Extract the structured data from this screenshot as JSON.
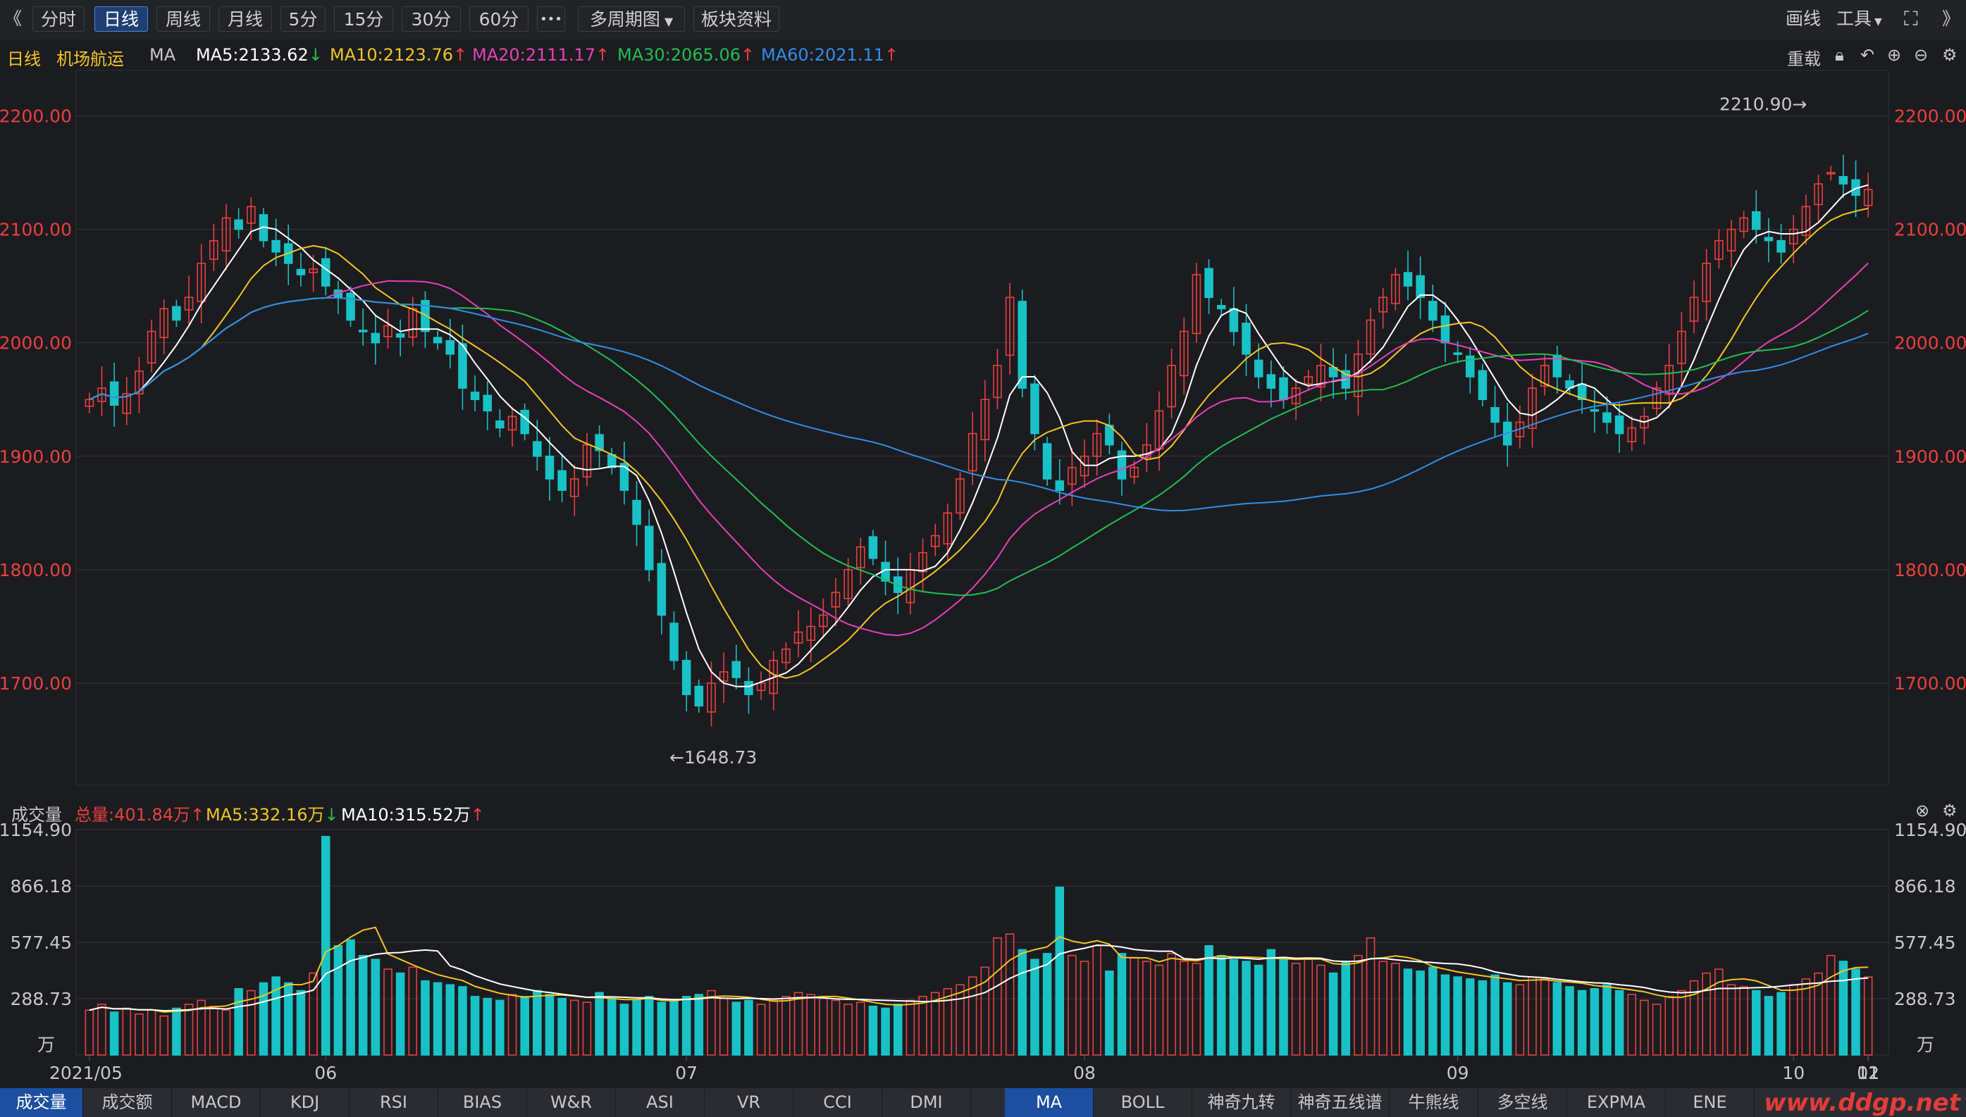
{
  "toolbar": {
    "back_glyph": "《",
    "buttons": [
      "分时",
      "日线",
      "周线",
      "月线",
      "5分",
      "15分",
      "30分",
      "60分"
    ],
    "active": "日线",
    "more_glyph": "•••",
    "multi_period": "多周期图",
    "sector": "板块资料",
    "draw": "画线",
    "tools": "工具",
    "right_glyph": "》"
  },
  "info": {
    "period": "日线",
    "name": "机场航运",
    "ma_label": "MA",
    "ma5": "MA5:2133.62",
    "ma10": "MA10:2123.76",
    "ma20": "MA20:2111.17",
    "ma30": "MA30:2065.06",
    "ma60": "MA60:2021.11",
    "reload": "重载"
  },
  "price_axis": {
    "ticks": [
      "2200.00",
      "2100.00",
      "2000.00",
      "1900.00",
      "1800.00",
      "1700.00"
    ],
    "values": [
      2200,
      2100,
      2000,
      1900,
      1800,
      1700
    ],
    "high_label": "2210.90→",
    "low_label": "←1648.73"
  },
  "volume": {
    "title": "成交量",
    "total": "总量:401.84万",
    "ma5": "MA5:332.16万",
    "ma10": "MA10:315.52万",
    "ticks": [
      "1154.90",
      "866.18",
      "577.45",
      "288.73"
    ],
    "unit": "万"
  },
  "dates": [
    "2021/05",
    "06",
    "07",
    "08",
    "09",
    "10",
    "11",
    "12",
    "01"
  ],
  "bottom_tabs_left": [
    "成交量",
    "成交额",
    "MACD",
    "KDJ",
    "RSI",
    "BIAS",
    "W&R",
    "ASI",
    "VR",
    "CCI",
    "DMI"
  ],
  "bottom_tabs_right": [
    "MA",
    "BOLL",
    "神奇九转",
    "神奇五线谱",
    "牛熊线",
    "多空线",
    "EXPMA",
    "ENE"
  ],
  "watermark": "www.ddgp.net",
  "colors": {
    "up": "#e8403f",
    "down": "#19c2c6",
    "ma5": "#ffffff",
    "ma10": "#f2c523",
    "ma20": "#e740b8",
    "ma30": "#1fbf53",
    "ma60": "#2f8fe8",
    "accent": "#1c4fa0"
  },
  "chart_data": {
    "type": "candlestick",
    "x_range": [
      "2021/05",
      "01"
    ],
    "ylim": [
      1610,
      2240
    ],
    "ma_values_latest": {
      "MA5": 2133.62,
      "MA10": 2123.76,
      "MA20": 2111.17,
      "MA30": 2065.06,
      "MA60": 2021.11
    },
    "high": 2210.9,
    "low": 1648.73,
    "close_series": [
      1950,
      1960,
      1945,
      1955,
      1975,
      2010,
      2030,
      2020,
      2040,
      2070,
      2090,
      2110,
      2100,
      2120,
      2090,
      2080,
      2070,
      2060,
      2065,
      2050,
      2040,
      2020,
      2010,
      2000,
      2015,
      2005,
      2030,
      2010,
      2000,
      1990,
      1960,
      1950,
      1940,
      1925,
      1935,
      1920,
      1900,
      1880,
      1870,
      1880,
      1910,
      1905,
      1890,
      1870,
      1840,
      1800,
      1760,
      1720,
      1690,
      1680,
      1700,
      1710,
      1705,
      1690,
      1700,
      1720,
      1730,
      1745,
      1750,
      1760,
      1780,
      1800,
      1820,
      1810,
      1790,
      1780,
      1800,
      1815,
      1830,
      1850,
      1880,
      1920,
      1950,
      1980,
      2040,
      1960,
      1920,
      1880,
      1870,
      1890,
      1900,
      1920,
      1910,
      1880,
      1890,
      1910,
      1940,
      1980,
      2010,
      2060,
      2040,
      2030,
      2010,
      1990,
      1970,
      1960,
      1950,
      1960,
      1970,
      1980,
      1970,
      1960,
      1990,
      2020,
      2040,
      2060,
      2050,
      2040,
      2020,
      2000,
      1990,
      1970,
      1950,
      1930,
      1910,
      1930,
      1960,
      1980,
      1970,
      1960,
      1950,
      1940,
      1930,
      1920,
      1925,
      1935,
      1960,
      1980,
      2010,
      2040,
      2070,
      2090,
      2100,
      2110,
      2100,
      2090,
      2080,
      2100,
      2120,
      2140,
      2150,
      2140,
      2130,
      2135
    ],
    "volume_series": [
      230,
      260,
      220,
      240,
      210,
      230,
      200,
      240,
      260,
      280,
      250,
      230,
      340,
      330,
      370,
      400,
      370,
      330,
      420,
      1120,
      560,
      590,
      510,
      490,
      440,
      420,
      450,
      380,
      370,
      360,
      350,
      300,
      290,
      280,
      310,
      300,
      330,
      310,
      290,
      280,
      270,
      320,
      290,
      260,
      280,
      300,
      270,
      280,
      300,
      310,
      330,
      290,
      270,
      280,
      260,
      280,
      300,
      320,
      310,
      290,
      280,
      260,
      270,
      250,
      240,
      260,
      280,
      300,
      320,
      340,
      360,
      400,
      450,
      600,
      620,
      540,
      490,
      520,
      860,
      510,
      480,
      560,
      430,
      520,
      500,
      480,
      460,
      520,
      480,
      470,
      560,
      510,
      490,
      480,
      460,
      540,
      500,
      470,
      490,
      460,
      420,
      480,
      510,
      600,
      480,
      470,
      440,
      430,
      450,
      410,
      400,
      390,
      380,
      410,
      370,
      360,
      400,
      390,
      370,
      350,
      330,
      340,
      360,
      330,
      310,
      280,
      260,
      300,
      330,
      380,
      420,
      440,
      360,
      350,
      330,
      300,
      320,
      360,
      390,
      420,
      510,
      480,
      440,
      400,
      420
    ]
  }
}
